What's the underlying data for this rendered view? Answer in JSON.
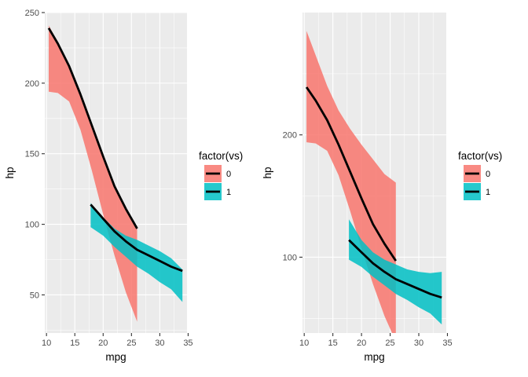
{
  "chart_data": [
    {
      "type": "area",
      "xlabel": "mpg",
      "ylabel": "hp",
      "xlim": [
        9.7,
        34.8
      ],
      "ylim": [
        23,
        250
      ],
      "xticks": [
        10,
        15,
        20,
        25,
        30,
        35
      ],
      "yticks": [
        50,
        100,
        150,
        200,
        250
      ],
      "grid": true,
      "legend": {
        "title": "factor(vs)",
        "position": "right",
        "entries": [
          "0",
          "1"
        ]
      },
      "series": [
        {
          "name": "0",
          "color": "#F8766D",
          "x": [
            10.4,
            12,
            14,
            16,
            18,
            20,
            22,
            24,
            26
          ],
          "y": [
            239,
            228,
            212,
            192,
            170,
            148,
            127,
            111,
            97
          ],
          "lower": [
            194,
            193,
            187,
            167,
            138,
            107,
            78,
            52,
            31
          ],
          "upper": [
            241,
            229,
            213,
            193,
            171,
            149,
            128,
            112,
            98
          ]
        },
        {
          "name": "1",
          "color": "#00BFC4",
          "x": [
            17.8,
            20,
            22,
            24,
            26,
            28,
            30,
            32,
            34
          ],
          "y": [
            114,
            104,
            95,
            88,
            82,
            78,
            74,
            70,
            67
          ],
          "lower": [
            98,
            92,
            84,
            77,
            70,
            65,
            59,
            54,
            45
          ],
          "upper": [
            115,
            105,
            97,
            92,
            89,
            85,
            81,
            76,
            68
          ]
        }
      ]
    },
    {
      "type": "area",
      "xlabel": "mpg",
      "ylabel": "hp",
      "xlim": [
        9.7,
        34.8
      ],
      "ylim": [
        38,
        300
      ],
      "xticks": [
        10,
        15,
        20,
        25,
        30,
        35
      ],
      "yticks": [
        100,
        200
      ],
      "grid": true,
      "legend": {
        "title": "factor(vs)",
        "position": "right",
        "entries": [
          "0",
          "1"
        ]
      },
      "series": [
        {
          "name": "0",
          "color": "#F8766D",
          "x": [
            10.4,
            12,
            14,
            16,
            18,
            20,
            22,
            24,
            26
          ],
          "y": [
            239,
            228,
            212,
            192,
            170,
            148,
            127,
            111,
            97
          ],
          "lower": [
            194,
            193,
            187,
            167,
            138,
            107,
            78,
            52,
            31
          ],
          "upper": [
            285,
            265,
            240,
            220,
            205,
            192,
            180,
            168,
            161
          ]
        },
        {
          "name": "1",
          "color": "#00BFC4",
          "x": [
            17.8,
            20,
            22,
            24,
            26,
            28,
            30,
            32,
            34
          ],
          "y": [
            114,
            104,
            95,
            88,
            82,
            78,
            74,
            70,
            67
          ],
          "lower": [
            98,
            92,
            84,
            77,
            70,
            65,
            59,
            54,
            45
          ],
          "upper": [
            131,
            114,
            104,
            98,
            94,
            90,
            88,
            87,
            88
          ]
        }
      ]
    }
  ]
}
